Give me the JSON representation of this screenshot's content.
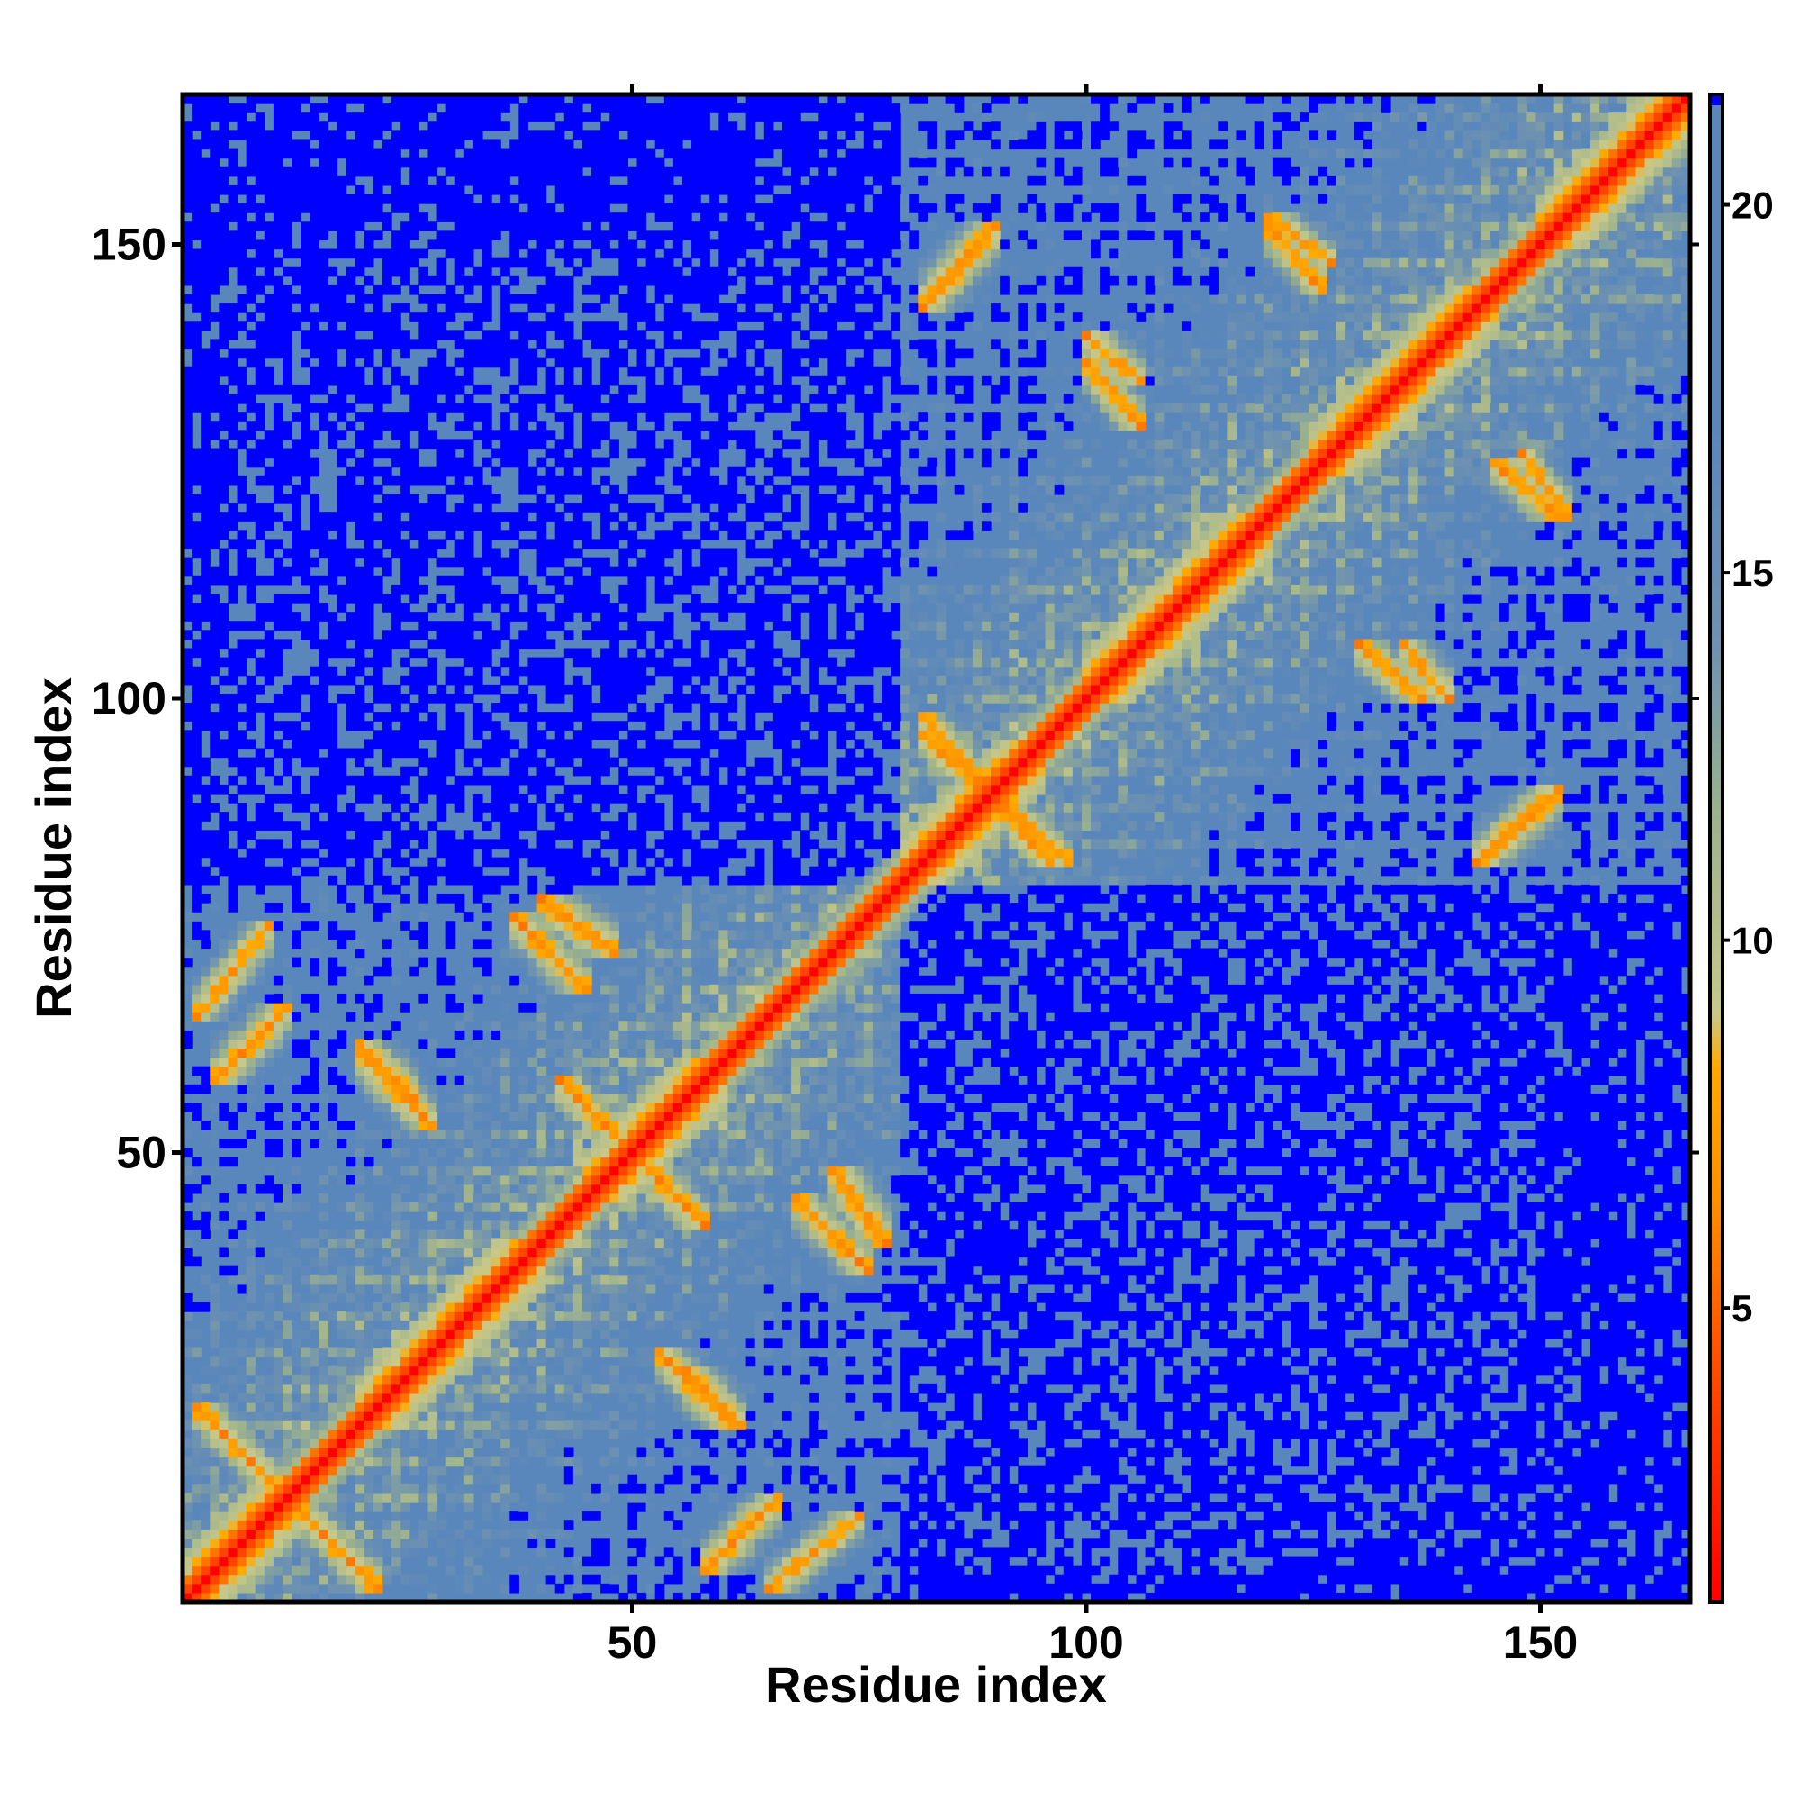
{
  "chart_data": {
    "type": "heatmap",
    "title": "",
    "xlabel": "Residue index",
    "ylabel": "Residue index",
    "n_residues": 166,
    "xlim": [
      1,
      166
    ],
    "ylim": [
      1,
      166
    ],
    "x_ticks": [
      50,
      100,
      150
    ],
    "y_ticks": [
      50,
      100,
      150
    ],
    "colorbar": {
      "range": [
        1,
        21.5
      ],
      "ticks": [
        5,
        10,
        15,
        20
      ],
      "stops": [
        {
          "value": 1,
          "color": "#ff0000"
        },
        {
          "value": 4.5,
          "color": "#ff5500"
        },
        {
          "value": 6.5,
          "color": "#ff9000"
        },
        {
          "value": 8.3,
          "color": "#ffaa00"
        },
        {
          "value": 9.0,
          "color": "#c8c88a"
        },
        {
          "value": 11.5,
          "color": "#a0b48c"
        },
        {
          "value": 14,
          "color": "#6e92b0"
        },
        {
          "value": 17,
          "color": "#5a87bb"
        },
        {
          "value": 21.5,
          "color": "#5a87bb"
        }
      ],
      "cap_color": "#0000ff",
      "cap_threshold": 21.5
    },
    "helices": [
      [
        1,
        14
      ],
      [
        20,
        40
      ],
      [
        45,
        60
      ],
      [
        80,
        95
      ],
      [
        100,
        120
      ],
      [
        125,
        145
      ],
      [
        150,
        166
      ]
    ],
    "contact_segments": [
      {
        "i": [
          2,
          12
        ],
        "j": [
          12,
          22
        ],
        "orientation": "anti"
      },
      {
        "i": [
          2,
          10
        ],
        "j": [
          65,
          75
        ],
        "orientation": "parallel"
      },
      {
        "i": [
          20,
          26
        ],
        "j": [
          56,
          62
        ],
        "orientation": "anti"
      },
      {
        "i": [
          40,
          48
        ],
        "j": [
          72,
          78
        ],
        "orientation": "anti"
      },
      {
        "i": [
          42,
          48
        ],
        "j": [
          52,
          58
        ],
        "orientation": "anti"
      },
      {
        "i": [
          58,
          66
        ],
        "j": [
          4,
          12
        ],
        "orientation": "parallel"
      },
      {
        "i": [
          53,
          61
        ],
        "j": [
          20,
          28
        ],
        "orientation": "anti"
      },
      {
        "i": [
          68,
          76
        ],
        "j": [
          37,
          45
        ],
        "orientation": "anti"
      },
      {
        "i": [
          82,
          96
        ],
        "j": [
          82,
          98
        ],
        "orientation": "anti"
      },
      {
        "i": [
          82,
          88
        ],
        "j": [
          143,
          150
        ],
        "orientation": "parallel"
      },
      {
        "i": [
          100,
          106
        ],
        "j": [
          130,
          137
        ],
        "orientation": "anti"
      },
      {
        "i": [
          120,
          126
        ],
        "j": [
          145,
          152
        ],
        "orientation": "anti"
      },
      {
        "i": [
          135,
          140
        ],
        "j": [
          100,
          106
        ],
        "orientation": "anti"
      },
      {
        "i": [
          143,
          152
        ],
        "j": [
          82,
          90
        ],
        "orientation": "parallel"
      },
      {
        "i": [
          148,
          153
        ],
        "j": [
          120,
          127
        ],
        "orientation": "anti"
      }
    ],
    "grid": false,
    "legend": "colorbar right"
  }
}
